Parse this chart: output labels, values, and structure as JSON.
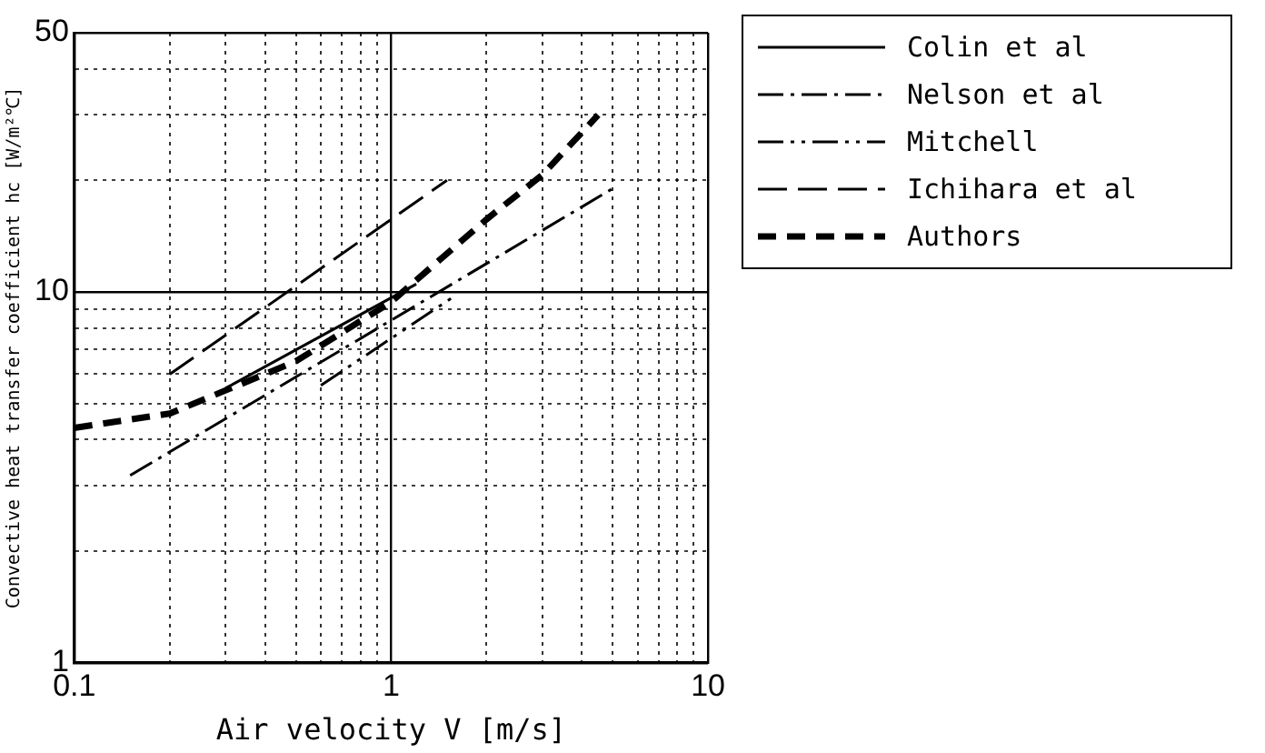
{
  "chart_data": {
    "type": "line",
    "xlabel": "Air velocity V [m/s]",
    "ylabel": "Convective heat transfer coefficient hc [W/m²℃]",
    "log": "xy",
    "grid": true,
    "legend": "right",
    "marker": "none",
    "xlim": [
      0.1,
      10
    ],
    "ylim": [
      1,
      50
    ],
    "xticks": [
      {
        "value": 0.1,
        "label": "0.1"
      },
      {
        "value": 0.2,
        "label": null
      },
      {
        "value": 0.3,
        "label": null
      },
      {
        "value": 0.4,
        "label": null
      },
      {
        "value": 0.5,
        "label": null
      },
      {
        "value": 0.6,
        "label": null
      },
      {
        "value": 0.7,
        "label": null
      },
      {
        "value": 0.8,
        "label": null
      },
      {
        "value": 0.9,
        "label": null
      },
      1,
      {
        "value": 2,
        "label": null
      },
      {
        "value": 3,
        "label": null
      },
      {
        "value": 4,
        "label": null
      },
      {
        "value": 5,
        "label": null
      },
      {
        "value": 6,
        "label": null
      },
      {
        "value": 7,
        "label": null
      },
      {
        "value": 8,
        "label": null
      },
      {
        "value": 9,
        "label": null
      },
      10
    ],
    "yticks": [
      1,
      {
        "value": 2,
        "label": null
      },
      {
        "value": 3,
        "label": null
      },
      {
        "value": 4,
        "label": null
      },
      {
        "value": 5,
        "label": null
      },
      {
        "value": 6,
        "label": null
      },
      {
        "value": 7,
        "label": null
      },
      {
        "value": 8,
        "label": null
      },
      {
        "value": 9,
        "label": null
      },
      10,
      {
        "value": 20,
        "label": null
      },
      {
        "value": 30,
        "label": null
      },
      {
        "value": 40,
        "label": null
      },
      50
    ],
    "series": [
      {
        "name": "Colin et al",
        "color": "#000000",
        "line_style": "solid",
        "x": [
          0.3,
          1.2
        ],
        "values": [
          5.5,
          10.5
        ]
      },
      {
        "name": "Nelson et al",
        "color": "#000000",
        "line_style": "dashdot",
        "x": [
          0.15,
          5
        ],
        "values": [
          3.2,
          19
        ]
      },
      {
        "name": "Mitchell",
        "color": "#000000",
        "line_style": "dashdotdot",
        "x": [
          0.6,
          1.6
        ],
        "values": [
          5.6,
          9.8
        ]
      },
      {
        "name": "Ichihara et al",
        "color": "#000000",
        "line_style": "longdash",
        "x": [
          0.2,
          1.5
        ],
        "values": [
          6,
          20
        ]
      },
      {
        "name": "Authors",
        "color": "#000000",
        "line_style": "dashed",
        "x": [
          0.1,
          0.2,
          0.5,
          1,
          2,
          3,
          4.5
        ],
        "values": [
          4.3,
          4.7,
          6.5,
          9.4,
          15.7,
          20.7,
          30
        ]
      }
    ]
  }
}
